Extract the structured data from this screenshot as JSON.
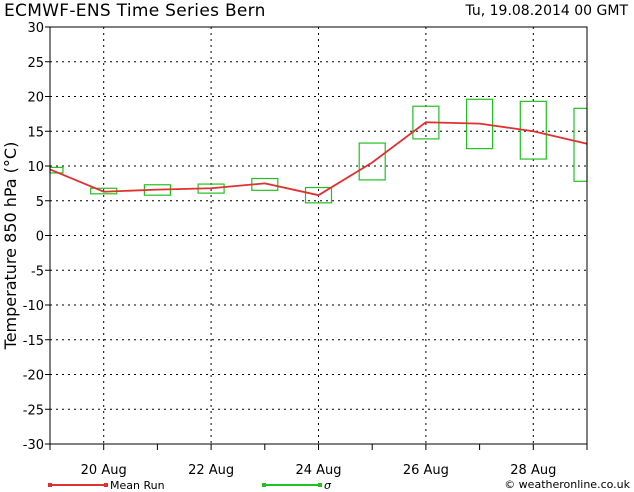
{
  "header": {
    "title": "ECMWF-ENS Time Series Bern",
    "date": "Tu, 19.08.2014 00 GMT"
  },
  "footer": {
    "credit": "© weatheronline.co.uk"
  },
  "colors": {
    "mean_line": "#e03030",
    "sigma_box": "#22c022",
    "grid": "#000000"
  },
  "chart_data": {
    "type": "line",
    "title": "ECMWF-ENS Time Series Bern",
    "ylabel": "Temperature 850 hPa (°C)",
    "xlabel": "",
    "ylim": [
      -30,
      30
    ],
    "xlim_days": [
      19,
      29
    ],
    "yticks": [
      30,
      25,
      20,
      15,
      10,
      5,
      0,
      -5,
      -10,
      -15,
      -20,
      -25,
      -30
    ],
    "xtick_labels": [
      {
        "day": 20,
        "label": "20 Aug"
      },
      {
        "day": 22,
        "label": "22 Aug"
      },
      {
        "day": 24,
        "label": "24 Aug"
      },
      {
        "day": 26,
        "label": "26 Aug"
      },
      {
        "day": 28,
        "label": "28 Aug"
      }
    ],
    "grid": true,
    "legend": {
      "position": "bottom",
      "entries": [
        {
          "name": "Mean Run",
          "symbol": "line"
        },
        {
          "name": "σ",
          "symbol": "box"
        }
      ]
    },
    "series": [
      {
        "name": "Mean Run",
        "x": [
          19,
          20,
          21,
          22,
          23,
          24,
          25,
          26,
          27,
          28,
          29
        ],
        "values": [
          9.5,
          6.3,
          6.6,
          6.8,
          7.5,
          5.8,
          10.5,
          16.3,
          16.1,
          15.0,
          13.2
        ]
      },
      {
        "name": "σ",
        "type": "box",
        "boxes": [
          {
            "x": 19,
            "low": 9.0,
            "high": 9.8
          },
          {
            "x": 20,
            "low": 6.0,
            "high": 6.8
          },
          {
            "x": 21,
            "low": 5.8,
            "high": 7.3
          },
          {
            "x": 22,
            "low": 6.1,
            "high": 7.4
          },
          {
            "x": 23,
            "low": 6.5,
            "high": 8.2
          },
          {
            "x": 24,
            "low": 4.7,
            "high": 6.9
          },
          {
            "x": 25,
            "low": 8.0,
            "high": 13.3
          },
          {
            "x": 26,
            "low": 13.9,
            "high": 18.6
          },
          {
            "x": 27,
            "low": 12.5,
            "high": 19.6
          },
          {
            "x": 28,
            "low": 11.0,
            "high": 19.3
          },
          {
            "x": 29,
            "low": 7.8,
            "high": 18.3
          }
        ]
      }
    ]
  }
}
